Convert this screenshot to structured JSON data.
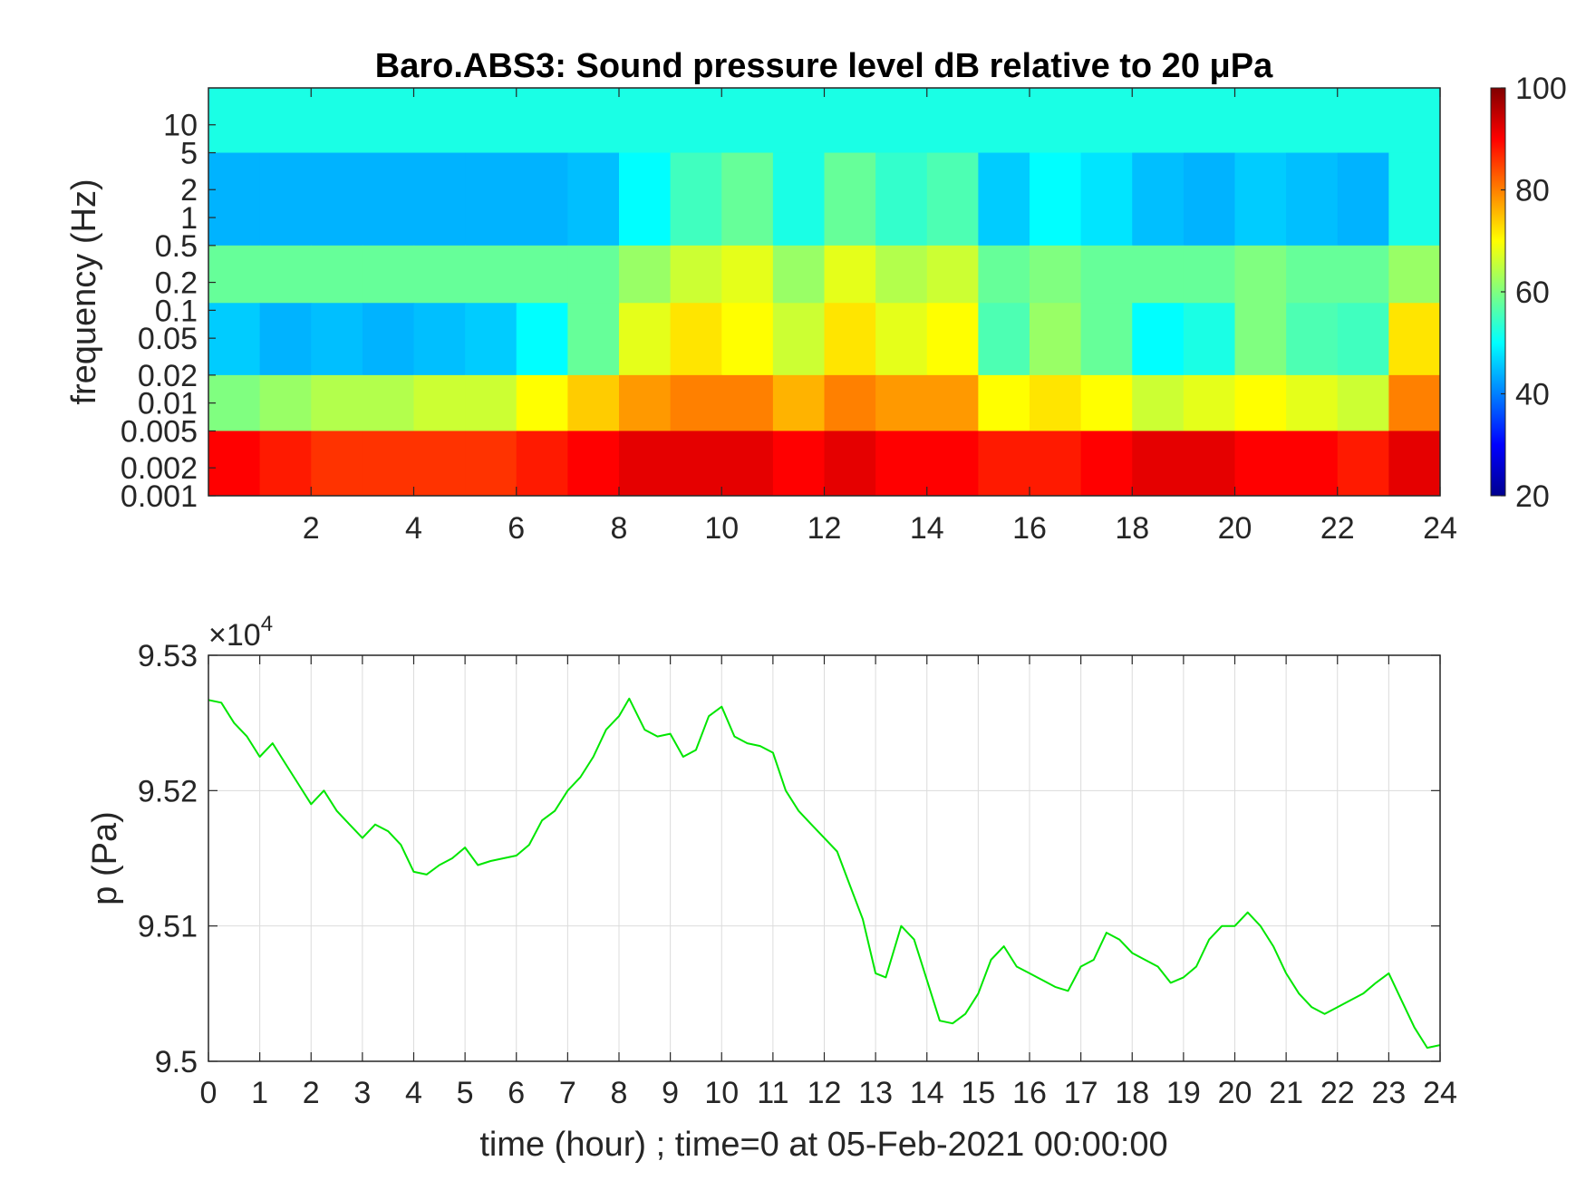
{
  "chart_data": [
    {
      "type": "heatmap",
      "title": "Baro.ABS3: Sound pressure level dB relative to 20 μPa",
      "xlabel": "",
      "ylabel": "frequency (Hz)",
      "x_ticks": [
        "2",
        "4",
        "6",
        "8",
        "10",
        "12",
        "14",
        "16",
        "18",
        "20",
        "22",
        "24"
      ],
      "xlim": [
        0,
        24
      ],
      "y_scale": "log",
      "ylim": [
        0.001,
        25
      ],
      "y_ticks": [
        "10",
        "5",
        "2",
        "1",
        "0.5",
        "0.2",
        "0.1",
        "0.05",
        "0.02",
        "0.01",
        "0.005",
        "0.002",
        "0.001"
      ],
      "y_tick_values": [
        10,
        5,
        2,
        1,
        0.5,
        0.2,
        0.1,
        0.05,
        0.02,
        0.01,
        0.005,
        0.002,
        0.001
      ],
      "colormap": "jet",
      "colorbar": {
        "ticks": [
          "100",
          "80",
          "60",
          "40",
          "20"
        ],
        "range": [
          20,
          100
        ]
      },
      "x": [
        0.5,
        1.5,
        2.5,
        3.5,
        4.5,
        5.5,
        6.5,
        7.5,
        8.5,
        9.5,
        10.5,
        11.5,
        12.5,
        13.5,
        14.5,
        15.5,
        16.5,
        17.5,
        18.5,
        19.5,
        20.5,
        21.5,
        22.5,
        23.5
      ],
      "bands": [
        {
          "freq_range": [
            5,
            25
          ],
          "values_dB": [
            52,
            52,
            52,
            52,
            52,
            52,
            52,
            52,
            52,
            52,
            52,
            52,
            52,
            52,
            52,
            52,
            52,
            52,
            52,
            52,
            52,
            52,
            52,
            52
          ]
        },
        {
          "freq_range": [
            0.5,
            5
          ],
          "values_dB": [
            44,
            44,
            44,
            44,
            44,
            44,
            44,
            45,
            50,
            55,
            58,
            52,
            58,
            54,
            56,
            46,
            50,
            48,
            45,
            44,
            46,
            45,
            44,
            52
          ]
        },
        {
          "freq_range": [
            0.12,
            0.5
          ],
          "values_dB": [
            58,
            58,
            58,
            58,
            58,
            58,
            58,
            58,
            62,
            66,
            68,
            62,
            68,
            64,
            66,
            58,
            60,
            58,
            58,
            58,
            60,
            58,
            58,
            62
          ]
        },
        {
          "freq_range": [
            0.02,
            0.12
          ],
          "values_dB": [
            46,
            44,
            45,
            44,
            45,
            46,
            50,
            58,
            68,
            72,
            70,
            66,
            72,
            68,
            70,
            56,
            62,
            58,
            50,
            52,
            60,
            56,
            55,
            72
          ]
        },
        {
          "freq_range": [
            0.005,
            0.02
          ],
          "values_dB": [
            60,
            62,
            64,
            64,
            66,
            66,
            70,
            74,
            78,
            80,
            80,
            76,
            80,
            78,
            78,
            70,
            72,
            70,
            66,
            68,
            70,
            68,
            66,
            80
          ]
        },
        {
          "freq_range": [
            0.001,
            0.005
          ],
          "values_dB": [
            90,
            88,
            86,
            86,
            86,
            86,
            88,
            90,
            92,
            92,
            92,
            90,
            92,
            90,
            90,
            88,
            88,
            90,
            92,
            92,
            90,
            90,
            88,
            92
          ]
        }
      ]
    },
    {
      "type": "line",
      "xlabel": "time (hour) ; time=0 at 05-Feb-2021 00:00:00",
      "ylabel": "p (Pa)",
      "y_exponent_label": "×10",
      "y_exponent": "4",
      "xlim": [
        0,
        24
      ],
      "ylim": [
        95000,
        95300
      ],
      "x_ticks": [
        "0",
        "1",
        "2",
        "3",
        "4",
        "5",
        "6",
        "7",
        "8",
        "9",
        "10",
        "11",
        "12",
        "13",
        "14",
        "15",
        "16",
        "17",
        "18",
        "19",
        "20",
        "21",
        "22",
        "23",
        "24"
      ],
      "y_ticks": [
        "9.53",
        "9.52",
        "9.51",
        "9.5"
      ],
      "y_tick_values": [
        95300,
        95200,
        95100,
        95000
      ],
      "grid": true,
      "line_color": "#00e600",
      "x": [
        0,
        0.25,
        0.5,
        0.75,
        1,
        1.25,
        1.5,
        1.75,
        2,
        2.25,
        2.5,
        2.75,
        3,
        3.25,
        3.5,
        3.75,
        4,
        4.25,
        4.5,
        4.75,
        5,
        5.25,
        5.5,
        5.75,
        6,
        6.25,
        6.5,
        6.75,
        7,
        7.25,
        7.5,
        7.75,
        8,
        8.2,
        8.5,
        8.75,
        9,
        9.25,
        9.5,
        9.75,
        10,
        10.25,
        10.5,
        10.75,
        11,
        11.25,
        11.5,
        11.75,
        12,
        12.25,
        12.5,
        12.75,
        13,
        13.2,
        13.5,
        13.75,
        14,
        14.25,
        14.5,
        14.75,
        15,
        15.25,
        15.5,
        15.75,
        16,
        16.25,
        16.5,
        16.75,
        17,
        17.25,
        17.5,
        17.75,
        18,
        18.25,
        18.5,
        18.75,
        19,
        19.25,
        19.5,
        19.75,
        20,
        20.25,
        20.5,
        20.75,
        21,
        21.25,
        21.5,
        21.75,
        22,
        22.25,
        22.5,
        22.75,
        23,
        23.25,
        23.5,
        23.75,
        24
      ],
      "y": [
        95267,
        95265,
        95250,
        95240,
        95225,
        95235,
        95220,
        95205,
        95190,
        95200,
        95185,
        95175,
        95165,
        95175,
        95170,
        95160,
        95140,
        95138,
        95145,
        95150,
        95158,
        95145,
        95148,
        95150,
        95152,
        95160,
        95178,
        95185,
        95200,
        95210,
        95225,
        95245,
        95255,
        95268,
        95245,
        95240,
        95242,
        95225,
        95230,
        95255,
        95262,
        95240,
        95235,
        95233,
        95228,
        95200,
        95185,
        95175,
        95165,
        95155,
        95130,
        95105,
        95065,
        95062,
        95100,
        95090,
        95060,
        95030,
        95028,
        95035,
        95050,
        95075,
        95085,
        95070,
        95065,
        95060,
        95055,
        95052,
        95070,
        95075,
        95095,
        95090,
        95080,
        95075,
        95070,
        95058,
        95062,
        95070,
        95090,
        95100,
        95100,
        95110,
        95100,
        95085,
        95065,
        95050,
        95040,
        95035,
        95040,
        95045,
        95050,
        95058,
        95065,
        95045,
        95025,
        95010,
        95012
      ]
    }
  ]
}
